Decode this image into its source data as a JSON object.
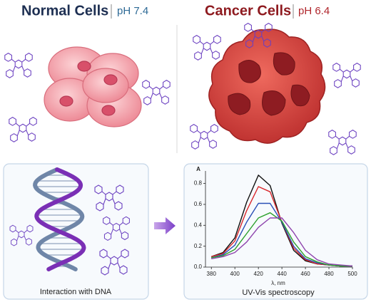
{
  "normal": {
    "title": "Normal Cells",
    "ph": "pH 7.4"
  },
  "cancer": {
    "title": "Cancer Cells",
    "ph": "pH 6.4"
  },
  "dna_caption": "Interaction with DNA",
  "chart_data": {
    "type": "line",
    "title": "UV-Vis spectroscopy",
    "xlabel": "λ, nm",
    "ylabel": "A",
    "x": [
      380,
      390,
      400,
      410,
      420,
      430,
      440,
      450,
      460,
      470,
      480,
      490,
      500
    ],
    "series": [
      {
        "color": "#111111",
        "values": [
          0.1,
          0.14,
          0.28,
          0.62,
          0.88,
          0.78,
          0.42,
          0.16,
          0.06,
          0.03,
          0.02,
          0.01,
          0.01
        ]
      },
      {
        "color": "#d9262a",
        "values": [
          0.1,
          0.13,
          0.25,
          0.54,
          0.77,
          0.72,
          0.43,
          0.18,
          0.07,
          0.03,
          0.02,
          0.01,
          0.01
        ]
      },
      {
        "color": "#2a4fb5",
        "values": [
          0.09,
          0.12,
          0.21,
          0.43,
          0.61,
          0.61,
          0.43,
          0.2,
          0.08,
          0.04,
          0.02,
          0.01,
          0.01
        ]
      },
      {
        "color": "#2ca02c",
        "values": [
          0.09,
          0.11,
          0.17,
          0.32,
          0.47,
          0.52,
          0.44,
          0.24,
          0.1,
          0.05,
          0.02,
          0.01,
          0.01
        ]
      },
      {
        "color": "#8e44ad",
        "values": [
          0.08,
          0.1,
          0.14,
          0.24,
          0.38,
          0.47,
          0.47,
          0.33,
          0.16,
          0.07,
          0.03,
          0.02,
          0.01
        ]
      }
    ],
    "xlim": [
      375,
      500
    ],
    "xticks": [
      380,
      400,
      420,
      440,
      460,
      480,
      500
    ],
    "ylim": [
      0,
      0.92
    ],
    "yticks": [
      {
        "value": 0,
        "label": "0.0"
      },
      {
        "value": 0.2,
        "label": "0.2"
      },
      {
        "value": 0.4,
        "label": "0.4"
      },
      {
        "value": 0.6,
        "label": "0.6"
      },
      {
        "value": 0.8,
        "label": "0.8"
      }
    ],
    "grid": false
  }
}
